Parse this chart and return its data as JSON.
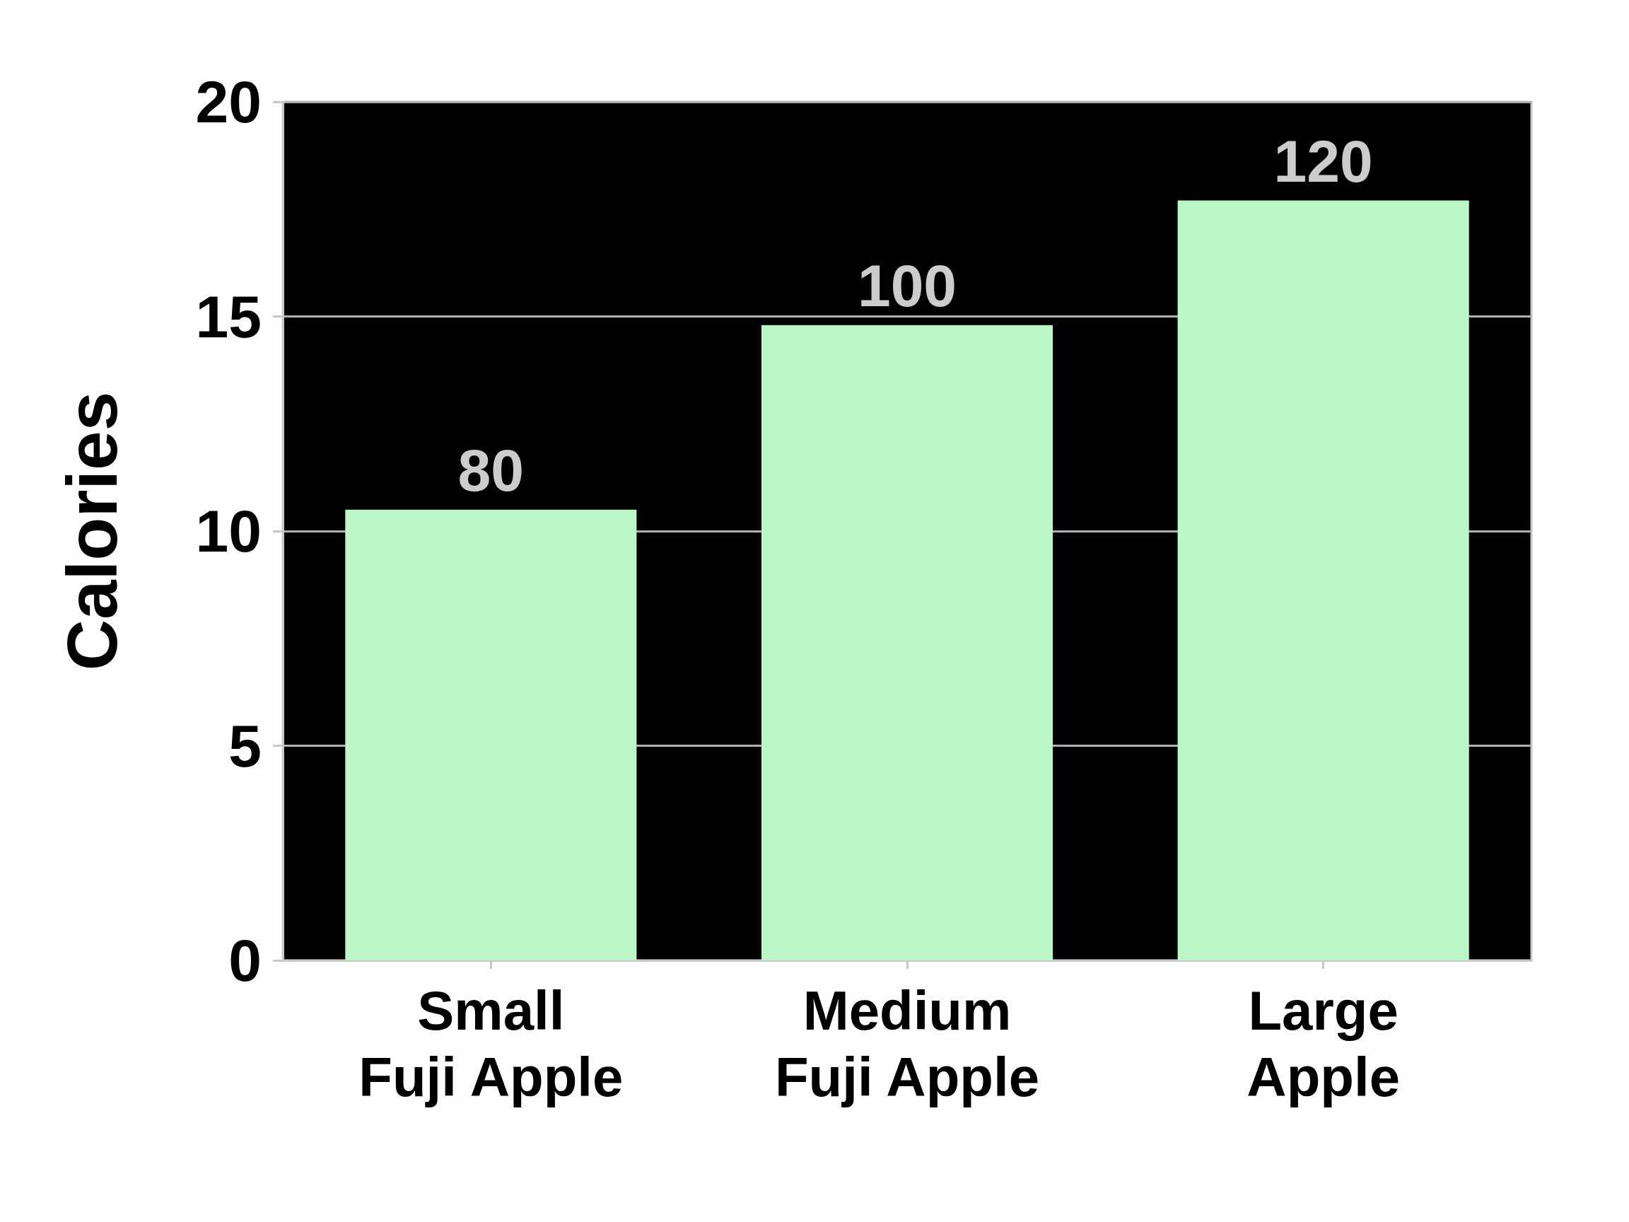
{
  "chart_data": {
    "type": "bar",
    "ylabel": "Calories",
    "categories": [
      "Small\nFuji Apple",
      "Medium\nFuji Apple",
      "Large\nApple"
    ],
    "values": [
      10.5,
      14.8,
      17.7
    ],
    "annotations": [
      {
        "text": "80",
        "x": "Small\nFuji Apple",
        "y": 10.5
      },
      {
        "text": "100",
        "x": "Medium\nFuji Apple",
        "y": 14.8
      },
      {
        "text": "120",
        "x": "Large\nApple",
        "y": 17.7
      }
    ],
    "color": "#bbf7c8",
    "ylim": [
      0,
      20
    ],
    "yticks": [
      0,
      5,
      10,
      15,
      20
    ],
    "grid": "y"
  }
}
